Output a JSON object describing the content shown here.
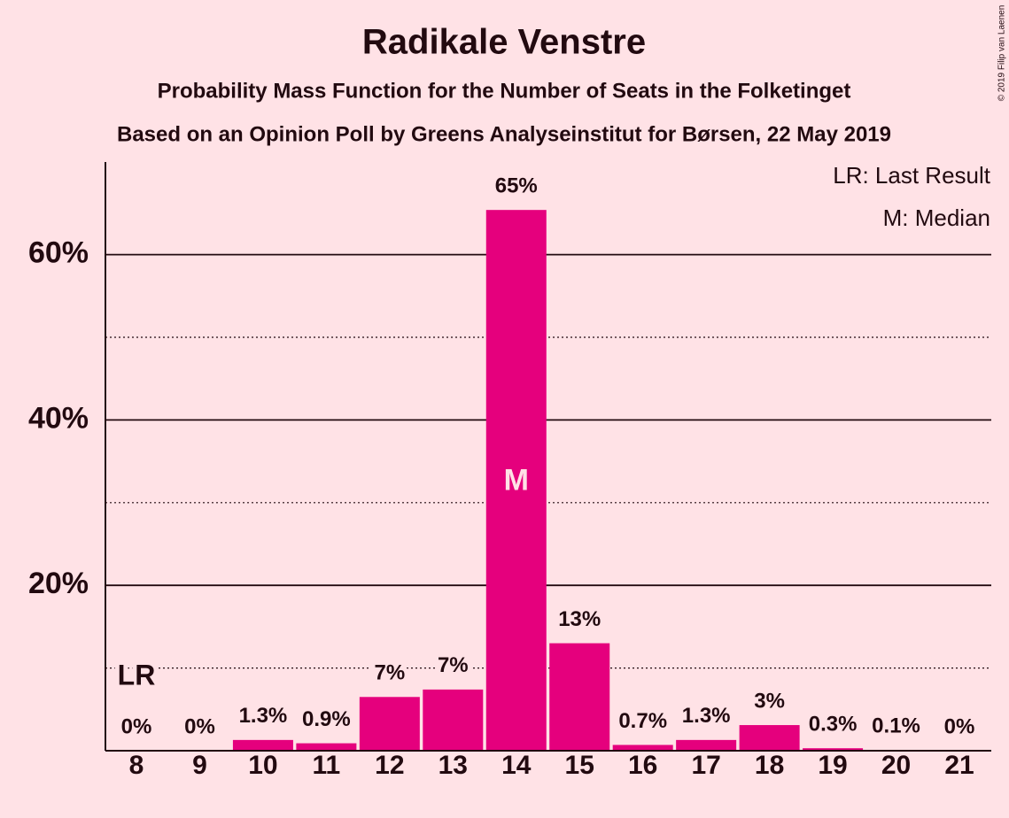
{
  "chart_data": {
    "type": "bar",
    "title": "Radikale Venstre",
    "subtitle": "Probability Mass Function for the Number of Seats in the Folketinget",
    "source_note": "Based on an Opinion Poll by Greens Analyseinstitut for Børsen, 22 May 2019",
    "copyright": "© 2019 Filip van Laenen",
    "categories": [
      "8",
      "9",
      "10",
      "11",
      "12",
      "13",
      "14",
      "15",
      "16",
      "17",
      "18",
      "19",
      "20",
      "21"
    ],
    "values": [
      0,
      0,
      1.3,
      0.9,
      6.5,
      7.4,
      65.4,
      13,
      0.7,
      1.3,
      3.1,
      0.3,
      0.1,
      0
    ],
    "value_labels": [
      "0%",
      "0%",
      "1.3%",
      "0.9%",
      "7%",
      "7%",
      "65%",
      "13%",
      "0.7%",
      "1.3%",
      "3%",
      "0.3%",
      "0.1%",
      "0%"
    ],
    "color": "#e5007d",
    "ylim": [
      0,
      71.2
    ],
    "yticks": [
      {
        "value": 20,
        "label": "20%"
      },
      {
        "value": 40,
        "label": "40%"
      },
      {
        "value": 60,
        "label": "60%"
      }
    ],
    "minor_yticks": [
      10,
      30,
      50
    ],
    "grid": true,
    "annotations": [
      {
        "text": "LR",
        "category": "8"
      },
      {
        "text": "M",
        "category": "14"
      }
    ],
    "legend": [
      "LR: Last Result",
      "M: Median"
    ],
    "legend_position": "upper right"
  }
}
